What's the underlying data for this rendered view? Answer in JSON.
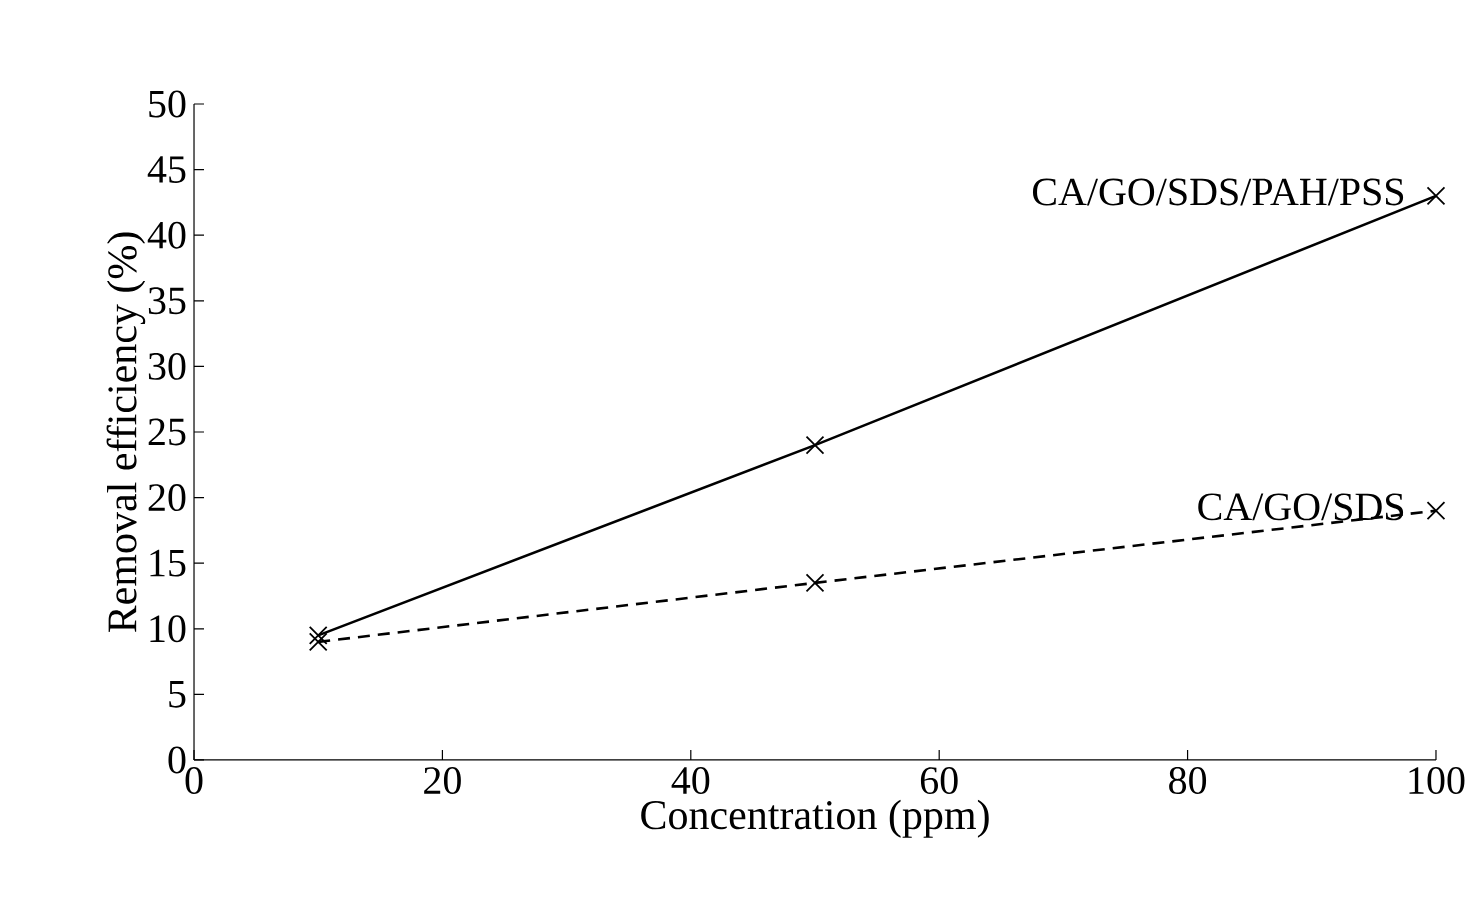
{
  "chart_data": {
    "type": "line",
    "xlabel": "Concentration (ppm)",
    "ylabel": "Removal efficiency (%)",
    "xlim": [
      0,
      100
    ],
    "xticks": [
      0,
      20,
      40,
      60,
      80,
      100
    ],
    "ylim": [
      0,
      50
    ],
    "yticks": [
      0,
      5,
      10,
      15,
      20,
      25,
      30,
      35,
      40,
      45,
      50
    ],
    "marker": "cross",
    "grid": false,
    "legend": false,
    "series": [
      {
        "name": "CA/GO/SDS/PAH/PSS",
        "color": "#000000",
        "line_style": "solid",
        "x": [
          10,
          50,
          100
        ],
        "values": [
          9.5,
          24,
          43
        ]
      },
      {
        "name": "CA/GO/SDS",
        "color": "#000000",
        "line_style": "dashed",
        "x": [
          10,
          50,
          100
        ],
        "values": [
          9,
          13.5,
          19
        ]
      }
    ]
  }
}
